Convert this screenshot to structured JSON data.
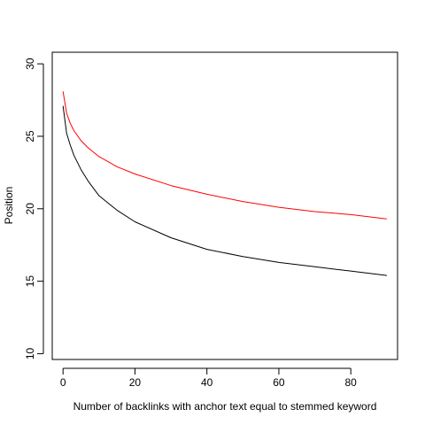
{
  "chart_data": {
    "type": "line",
    "title": "",
    "xlabel": "Number of backlinks with anchor text equal to stemmed keyword",
    "ylabel": "Position",
    "xlim": [
      -3,
      93
    ],
    "ylim": [
      9.6,
      30.8
    ],
    "x_ticks": [
      0,
      20,
      40,
      60,
      80
    ],
    "y_ticks": [
      10,
      15,
      20,
      25,
      30
    ],
    "grid": false,
    "legend": "none",
    "series": [
      {
        "color": "#000000",
        "x": [
          0,
          1,
          2,
          3,
          5,
          7,
          10,
          15,
          20,
          30,
          40,
          50,
          60,
          70,
          80,
          90
        ],
        "y": [
          27.1,
          25.2,
          24.4,
          23.7,
          22.7,
          21.9,
          20.9,
          19.9,
          19.1,
          18.0,
          17.2,
          16.7,
          16.3,
          16.0,
          15.7,
          15.4
        ]
      },
      {
        "color": "#ff0000",
        "x": [
          0,
          1,
          2,
          3,
          5,
          7,
          10,
          15,
          20,
          30,
          40,
          50,
          60,
          70,
          80,
          90
        ],
        "y": [
          28.1,
          26.6,
          25.9,
          25.4,
          24.7,
          24.2,
          23.6,
          22.9,
          22.4,
          21.6,
          21.0,
          20.5,
          20.1,
          19.8,
          19.6,
          19.3
        ]
      }
    ]
  }
}
